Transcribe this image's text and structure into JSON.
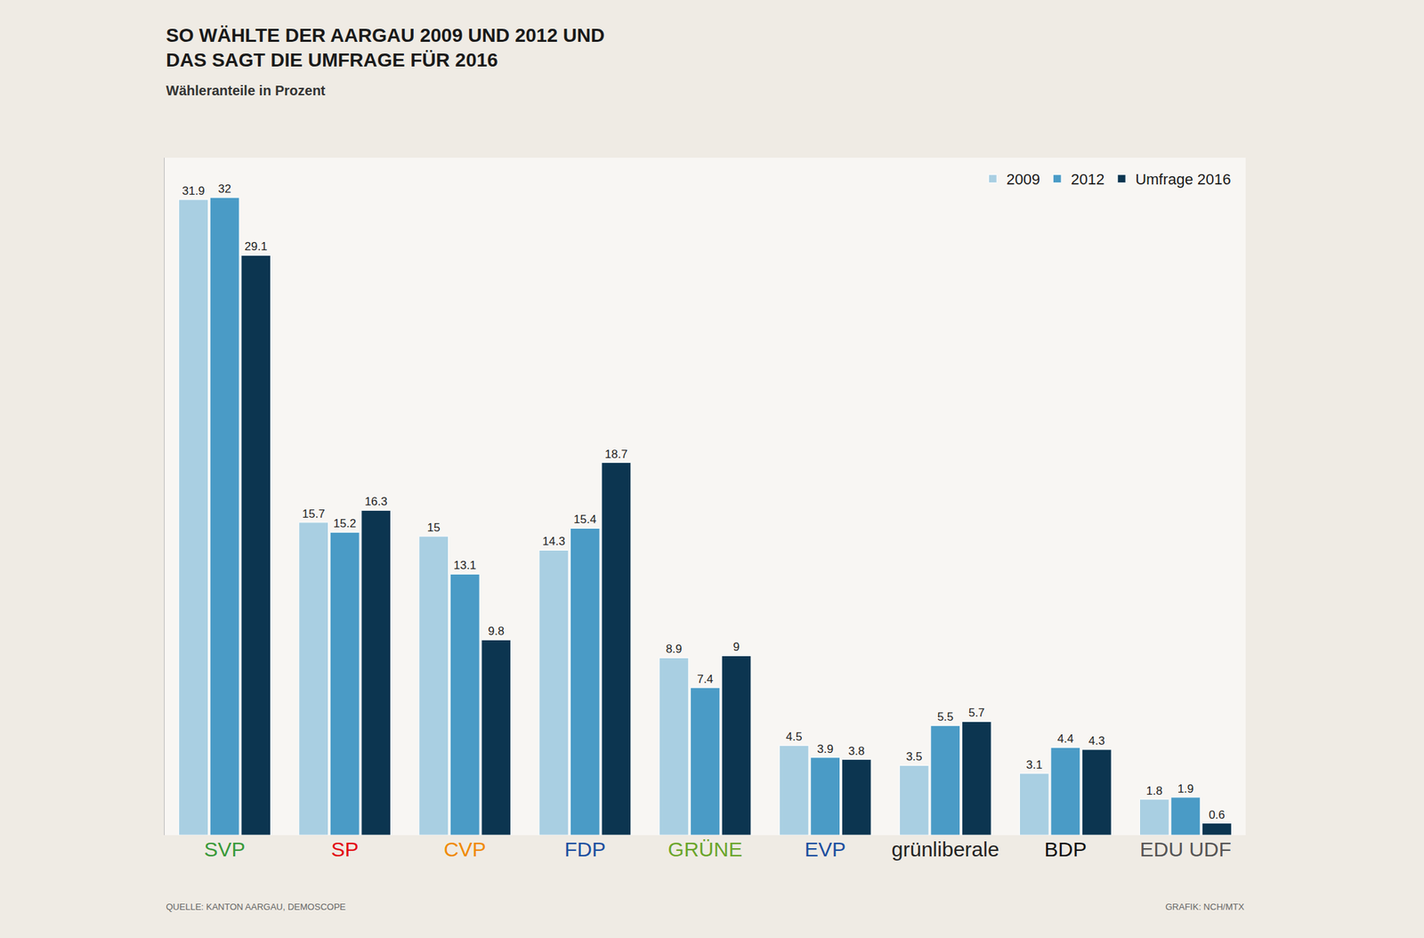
{
  "chart_data": {
    "type": "bar",
    "title": "SO WÄHLTE DER AARGAU 2009 UND 2012 UND DAS SAGT DIE UMFRAGE FÜR 2016",
    "subtitle": "Wähleranteile in Prozent",
    "annotations": [
      "QUELLE: KANTON AARGAU, DEMOSCOPE",
      "GRAFIK: NCH/MTX"
    ],
    "categories": [
      "SVP",
      "SP",
      "CVP",
      "FDP",
      "GRÜNE",
      "EVP",
      "grünliberale",
      "BDP",
      "EDU UDF"
    ],
    "series": [
      {
        "name": "2009",
        "color": "#a9cfe2",
        "values": [
          31.9,
          15.7,
          15,
          14.3,
          8.9,
          4.5,
          3.5,
          3.1,
          1.8
        ]
      },
      {
        "name": "2012",
        "color": "#4a9bc6",
        "values": [
          32,
          15.2,
          13.1,
          15.4,
          7.4,
          3.9,
          5.5,
          4.4,
          1.9
        ]
      },
      {
        "name": "Umfrage 2016",
        "color": "#0c3550",
        "values": [
          29.1,
          16.3,
          9.8,
          18.7,
          9,
          3.8,
          5.7,
          4.3,
          0.6
        ]
      }
    ],
    "ylim": [
      0,
      34
    ],
    "yticks": [],
    "grid": false,
    "legend": "top right",
    "data_labels": true,
    "tick_labels": "x"
  }
}
